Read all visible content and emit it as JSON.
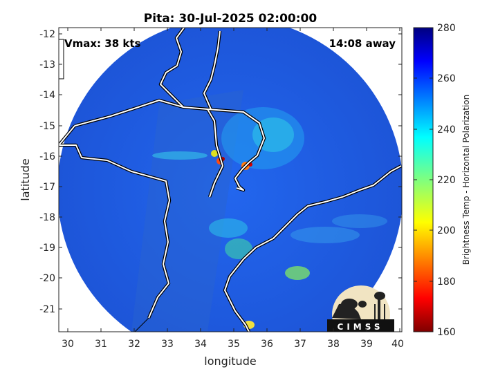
{
  "title": "Pita: 30-Jul-2025 02:00:00",
  "vmax_label": "Vmax: 38 kts",
  "away_label": "14:08 away",
  "xlabel": "longitude",
  "ylabel": "latitude",
  "xticks": [
    "30",
    "31",
    "32",
    "33",
    "34",
    "35",
    "36",
    "37",
    "38",
    "39",
    "40"
  ],
  "yticks": [
    "-12",
    "-13",
    "-14",
    "-15",
    "-16",
    "-17",
    "-18",
    "-19",
    "-20",
    "-21"
  ],
  "colorbar": {
    "label": "Brightness Temp - Horizontal Polarization",
    "ticks": [
      "280",
      "260",
      "240",
      "220",
      "200",
      "180",
      "160"
    ],
    "range": [
      160,
      280
    ],
    "colormap": "jet"
  },
  "logo_text": "CIMSS",
  "colors": {
    "background_disk": "#1f63e6",
    "coastline": "#ffffff",
    "outline": "#000000"
  }
}
